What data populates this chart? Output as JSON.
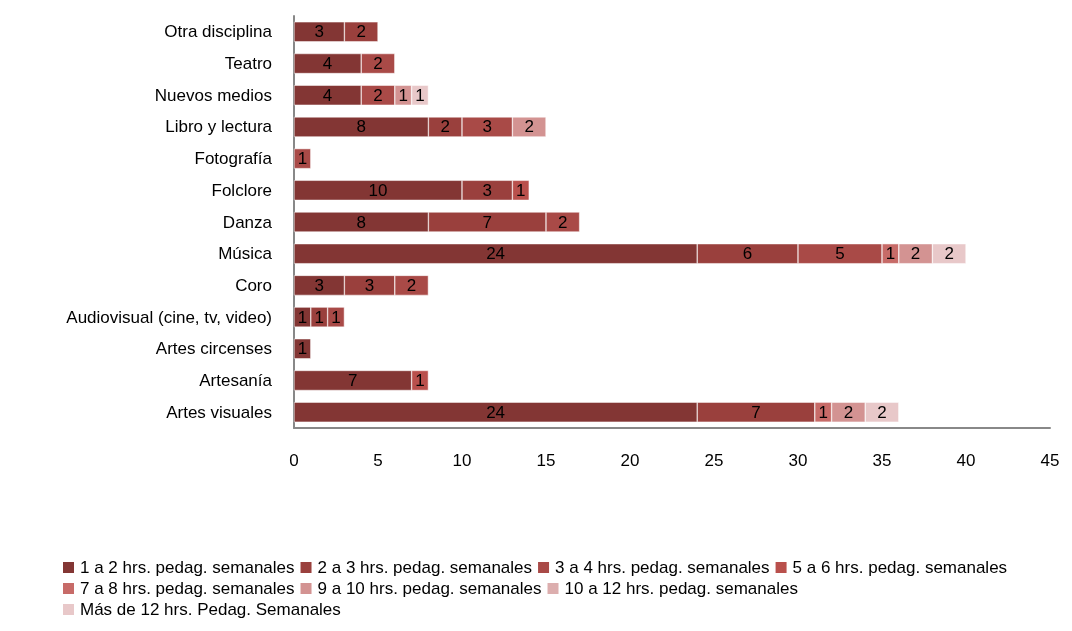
{
  "chart_data": {
    "type": "bar",
    "orientation": "horizontal",
    "stacked": true,
    "data_labels": true,
    "grid": false,
    "legend": "bottom",
    "categories": [
      "Otra disciplina",
      "Teatro",
      "Nuevos medios",
      "Libro y lectura",
      "Fotografía",
      "Folclore",
      "Danza",
      "Música",
      "Coro",
      "Audiovisual (cine, tv, video)",
      "Artes circenses",
      "Artesanía",
      "Artes visuales"
    ],
    "xlim": [
      0,
      45
    ],
    "xticks": [
      0,
      5,
      10,
      15,
      20,
      25,
      30,
      35,
      40,
      45
    ],
    "series": [
      {
        "name": "1 a 2 hrs. pedag. semanales",
        "color": "#833634",
        "values": [
          3,
          4,
          4,
          8,
          null,
          10,
          8,
          24,
          3,
          1,
          1,
          7,
          24
        ]
      },
      {
        "name": "2 a 3 hrs. pedag. semanales",
        "color": "#9a403d",
        "values": [
          2,
          null,
          null,
          2,
          null,
          3,
          7,
          6,
          3,
          1,
          null,
          null,
          7
        ]
      },
      {
        "name": "3 a 4 hrs. pedag. semanales",
        "color": "#a94a47",
        "values": [
          null,
          2,
          2,
          3,
          1,
          null,
          2,
          5,
          2,
          1,
          null,
          null,
          null
        ]
      },
      {
        "name": "5 a 6 hrs. pedag. semanales",
        "color": "#b9504c",
        "values": [
          null,
          null,
          null,
          null,
          null,
          1,
          null,
          null,
          null,
          null,
          null,
          1,
          null
        ]
      },
      {
        "name": "7 a 8 hrs. pedag. semanales",
        "color": "#c76b68",
        "values": [
          null,
          null,
          null,
          null,
          null,
          null,
          null,
          1,
          null,
          null,
          null,
          null,
          1
        ]
      },
      {
        "name": "9 a 10 hrs. pedag. semanales",
        "color": "#d39392",
        "values": [
          null,
          null,
          1,
          2,
          null,
          null,
          null,
          2,
          null,
          null,
          null,
          null,
          2
        ]
      },
      {
        "name": "10 a 12 hrs. pedag. semanales",
        "color": "#dcaeae",
        "values": [
          null,
          null,
          null,
          null,
          null,
          null,
          null,
          null,
          null,
          null,
          null,
          null,
          null
        ]
      },
      {
        "name": "Más de 12 hrs. Pedag. Semanales",
        "color": "#e8c8c9",
        "values": [
          null,
          null,
          1,
          null,
          null,
          null,
          null,
          2,
          null,
          null,
          null,
          null,
          2
        ]
      }
    ]
  }
}
